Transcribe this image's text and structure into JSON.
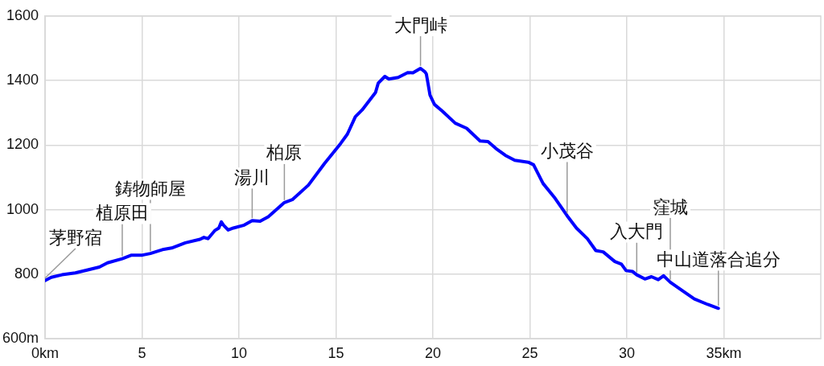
{
  "chart_data": {
    "type": "line",
    "x": [
      0,
      0.32,
      0.87,
      1.56,
      2.25,
      2.8,
      3.22,
      3.98,
      4.46,
      5.02,
      5.43,
      6.12,
      6.53,
      7.23,
      7.99,
      8.19,
      8.4,
      8.75,
      8.96,
      9.09,
      9.2,
      9.44,
      9.71,
      10.27,
      10.68,
      11.09,
      11.51,
      12.34,
      12.75,
      13.58,
      14.41,
      15.24,
      15.59,
      16.0,
      16.35,
      17.04,
      17.18,
      17.52,
      17.73,
      18.21,
      18.7,
      18.97,
      19.36,
      19.59,
      19.66,
      19.85,
      20.08,
      20.49,
      21.15,
      21.74,
      22.43,
      22.84,
      23.26,
      23.74,
      24.22,
      24.92,
      25.19,
      25.68,
      26.3,
      26.92,
      27.4,
      27.96,
      28.4,
      28.78,
      29.38,
      29.72,
      29.96,
      30.3,
      30.51,
      30.93,
      31.27,
      31.62,
      31.89,
      32.24,
      32.79,
      33.48,
      34.17,
      34.72
    ],
    "series": [
      {
        "color": "#0000ff",
        "values": [
          780,
          790,
          798,
          804,
          814,
          822,
          835,
          848,
          859,
          859,
          864,
          877,
          881,
          897,
          908,
          914,
          910,
          935,
          943,
          962,
          952,
          937,
          943,
          952,
          966,
          964,
          978,
          1022,
          1031,
          1076,
          1143,
          1205,
          1234,
          1288,
          1309,
          1363,
          1392,
          1413,
          1405,
          1410,
          1425,
          1424,
          1438,
          1427,
          1421,
          1355,
          1326,
          1305,
          1268,
          1252,
          1213,
          1211,
          1189,
          1168,
          1153,
          1147,
          1139,
          1081,
          1035,
          981,
          943,
          910,
          873,
          869,
          839,
          831,
          811,
          808,
          798,
          785,
          792,
          783,
          795,
          775,
          752,
          723,
          706,
          694
        ]
      }
    ],
    "xlim": [
      0,
      40
    ],
    "xticks": [
      {
        "value": 0,
        "label": "0km"
      },
      5,
      10,
      15,
      20,
      25,
      30,
      {
        "value": 35,
        "label": "35km"
      }
    ],
    "ylim": [
      600,
      1600
    ],
    "yticks": [
      {
        "value": 600,
        "label": "600m"
      },
      800,
      1000,
      1200,
      1400,
      1600
    ],
    "grid": true,
    "marker": "none",
    "line_style": "solid",
    "annotations": [
      {
        "text": "茅野宿",
        "x": 0,
        "y": 780
      },
      {
        "text": "植原田",
        "x": 3.98,
        "y": 848
      },
      {
        "text": "鋳物師屋",
        "x": 5.43,
        "y": 864
      },
      {
        "text": "湯川",
        "x": 10.68,
        "y": 966
      },
      {
        "text": "柏原",
        "x": 12.34,
        "y": 1022
      },
      {
        "text": "大門峠",
        "x": 19.36,
        "y": 1438
      },
      {
        "text": "小茂谷",
        "x": 26.92,
        "y": 981
      },
      {
        "text": "入大門",
        "x": 30.51,
        "y": 798
      },
      {
        "text": "窪城",
        "x": 32.24,
        "y": 775
      },
      {
        "text": "中山道落合追分",
        "x": 34.72,
        "y": 694
      }
    ]
  }
}
